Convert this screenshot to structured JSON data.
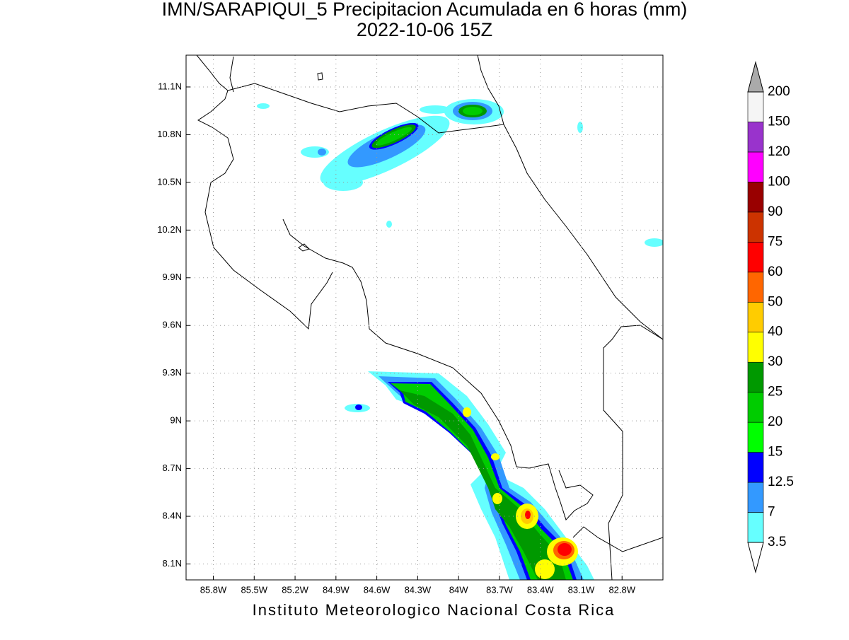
{
  "map": {
    "title": "IMN/SARAPIQUI_5 Precipitacion Acumulada en 6 horas (mm)",
    "subtitle": "2022-10-06 15Z",
    "footer": "Instituto Meteorologico Nacional Costa Rica",
    "xlim": [
      -86,
      -82.5
    ],
    "ylim": [
      8,
      11.3
    ],
    "grid": true,
    "xticks": [
      {
        "value": -85.8,
        "label": "85.8W"
      },
      {
        "value": -85.5,
        "label": "85.5W"
      },
      {
        "value": -85.2,
        "label": "85.2W"
      },
      {
        "value": -84.9,
        "label": "84.9W"
      },
      {
        "value": -84.6,
        "label": "84.6W"
      },
      {
        "value": -84.3,
        "label": "84.3W"
      },
      {
        "value": -84,
        "label": "84W"
      },
      {
        "value": -83.7,
        "label": "83.7W"
      },
      {
        "value": -83.4,
        "label": "83.4W"
      },
      {
        "value": -83.1,
        "label": "83.1W"
      },
      {
        "value": -82.8,
        "label": "82.8W"
      }
    ],
    "yticks": [
      {
        "value": 11.1,
        "label": "11.1N"
      },
      {
        "value": 10.8,
        "label": "10.8N"
      },
      {
        "value": 10.5,
        "label": "10.5N"
      },
      {
        "value": 10.2,
        "label": "10.2N"
      },
      {
        "value": 9.9,
        "label": "9.9N"
      },
      {
        "value": 9.6,
        "label": "9.6N"
      },
      {
        "value": 9.3,
        "label": "9.3N"
      },
      {
        "value": 9,
        "label": "9N"
      },
      {
        "value": 8.7,
        "label": "8.7N"
      },
      {
        "value": 8.4,
        "label": "8.4N"
      },
      {
        "value": 8.1,
        "label": "8.1N"
      }
    ],
    "colorbar": {
      "levels": [
        3.5,
        7,
        12.5,
        15,
        20,
        25,
        30,
        40,
        50,
        60,
        75,
        90,
        100,
        120,
        150,
        200
      ],
      "colors": [
        "#66ffff",
        "#3399ff",
        "#0000ff",
        "#00ff00",
        "#00cc00",
        "#009900",
        "#ffff00",
        "#ffcc00",
        "#ff6600",
        "#ff0000",
        "#cc3300",
        "#990000",
        "#ff00ff",
        "#9933cc",
        "#f5f5f5"
      ],
      "under_color": "#ffffff",
      "over_color": "#aaaaaa"
    }
  }
}
